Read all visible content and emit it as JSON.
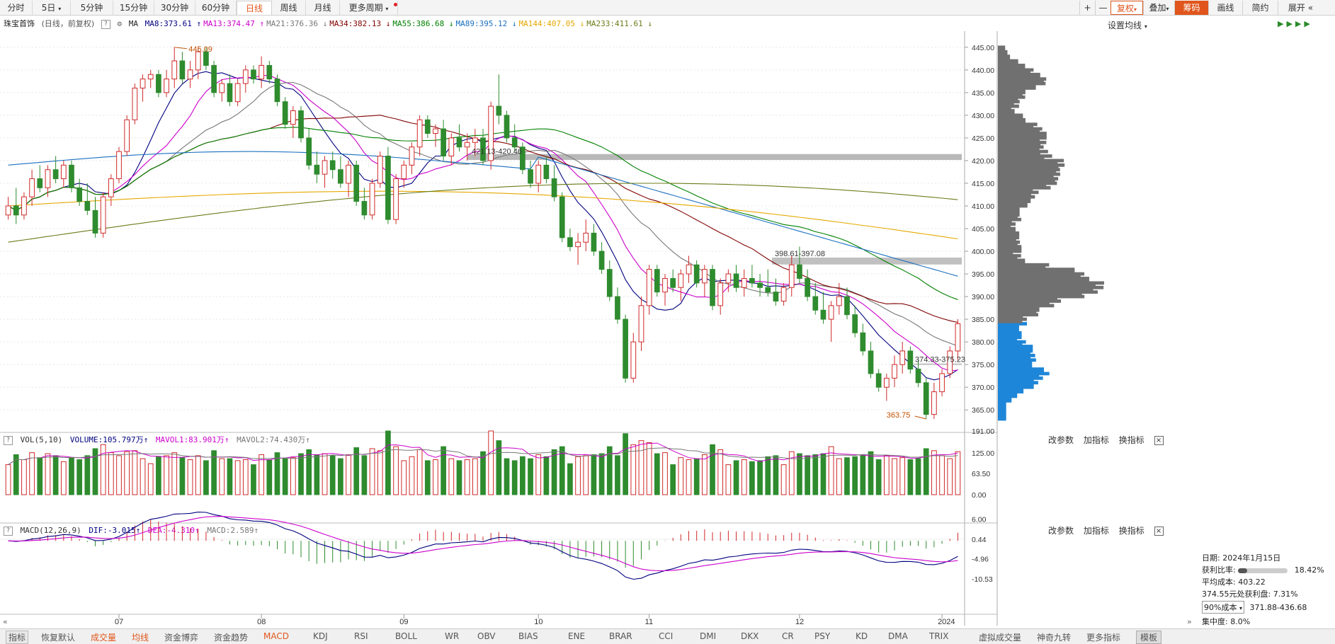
{
  "toolbar": {
    "periods": [
      "分时",
      "5日",
      "5分钟",
      "15分钟",
      "30分钟",
      "60分钟",
      "日线",
      "周线",
      "月线",
      "更多周期"
    ],
    "active_period": "日线",
    "right": {
      "plus": "+",
      "minus": "—",
      "fuquan": "复权",
      "diejia": "叠加",
      "chouma": "筹码",
      "huaxian": "画线",
      "jianyue": "简约",
      "zhankai": "展开",
      "arrows": "«"
    }
  },
  "header": {
    "stock_name": "珠宝首饰",
    "mode": "(日线，前复权)",
    "help": "?",
    "ma_label": "MA",
    "ma": [
      {
        "label": "MA8:373.61",
        "color": "#000080",
        "arrow": "↑"
      },
      {
        "label": "MA13:374.47",
        "color": "#cc00cc",
        "arrow": "↑"
      },
      {
        "label": "MA21:376.36",
        "color": "#777777",
        "arrow": "↓"
      },
      {
        "label": "MA34:382.13",
        "color": "#800000",
        "arrow": "↓"
      },
      {
        "label": "MA55:386.68",
        "color": "#008000",
        "arrow": "↓"
      },
      {
        "label": "MA89:395.12",
        "color": "#1a6fc0",
        "arrow": "↓"
      },
      {
        "label": "MA144:407.05",
        "color": "#e6a800",
        "arrow": "↓"
      },
      {
        "label": "MA233:411.61",
        "color": "#6b7d1a",
        "arrow": "↓"
      }
    ],
    "setting": "设置均线"
  },
  "price_axis": [
    "445.00",
    "440.00",
    "435.00",
    "430.00",
    "425.00",
    "420.00",
    "415.00",
    "410.00",
    "405.00",
    "400.00",
    "395.00",
    "390.00",
    "385.00",
    "380.00",
    "375.00",
    "370.00",
    "365.00"
  ],
  "annotations": {
    "high": "445.09",
    "low": "363.75",
    "band1": "421.13-420.46",
    "band2": "398.61-397.08",
    "band3": "374.33-375.23"
  },
  "volume": {
    "help": "?",
    "label": "VOL(5,10)",
    "volume": "VOLUME:105.797万",
    "mavol1": "MAVOL1:83.901万",
    "mavol2": "MAVOL2:74.430万",
    "axis": [
      "191.00",
      "125.00",
      "63.50",
      "0.00"
    ],
    "actions": [
      "改参数",
      "加指标",
      "换指标"
    ],
    "close": "×"
  },
  "macd": {
    "help": "?",
    "label": "MACD(12,26,9)",
    "dif": "DIF:-3.015",
    "dea": "DEA:-4.310",
    "macd": "MACD:2.589",
    "axis": [
      "6.00",
      "0.44",
      "-4.96",
      "-10.53"
    ],
    "actions": [
      "改参数",
      "加指标",
      "换指标"
    ],
    "close": "×"
  },
  "months": [
    "07",
    "08",
    "09",
    "10",
    "11",
    "12",
    "2024"
  ],
  "chip_info": {
    "date": "日期: 2024年1月15日",
    "profit_label": "获利比率:",
    "profit_value": "18.42%",
    "avg_cost": "平均成本: 403.22",
    "at_price": "374.55元处获利盘: 7.31%",
    "cost_select": "90%成本",
    "cost_range": "371.88-436.68",
    "concentration": "集中度: 8.0%"
  },
  "indicators": [
    "指标",
    "恢复默认",
    "成交量",
    "均线",
    "资金博弈",
    "资金趋势",
    "MACD",
    "KDJ",
    "RSI",
    "BOLL",
    "WR",
    "OBV",
    "BIAS",
    "ENE",
    "BRAR",
    "CCI",
    "DMI",
    "DKX",
    "CR",
    "PSY",
    "KD",
    "DMA",
    "TRIX",
    "虚拟成交量",
    "神奇九转",
    "更多指标",
    "模板"
  ],
  "highlighted_indicators": [
    "成交量",
    "均线",
    "MACD"
  ],
  "chart_data": {
    "type": "candlestick",
    "y_range": [
      363,
      447
    ],
    "candles_ohlc": [
      [
        408,
        412,
        407,
        410
      ],
      [
        410,
        414,
        406,
        408
      ],
      [
        408,
        413,
        407,
        412
      ],
      [
        412,
        418,
        410,
        416
      ],
      [
        416,
        419,
        413,
        414
      ],
      [
        414,
        419,
        412,
        418
      ],
      [
        418,
        421,
        415,
        416
      ],
      [
        416,
        420,
        414,
        419
      ],
      [
        419,
        420,
        413,
        414
      ],
      [
        414,
        416,
        410,
        411
      ],
      [
        411,
        415,
        408,
        409
      ],
      [
        409,
        412,
        403,
        404
      ],
      [
        404,
        413,
        403,
        412
      ],
      [
        412,
        417,
        410,
        416
      ],
      [
        416,
        423,
        415,
        422
      ],
      [
        422,
        430,
        421,
        429
      ],
      [
        429,
        437,
        428,
        436
      ],
      [
        436,
        439,
        433,
        438
      ],
      [
        438,
        440,
        436,
        439
      ],
      [
        439,
        440,
        434,
        435
      ],
      [
        435,
        440,
        434,
        438
      ],
      [
        438,
        445,
        436,
        442
      ],
      [
        442,
        444,
        437,
        438
      ],
      [
        438,
        442,
        436,
        440
      ],
      [
        440,
        445,
        438,
        444
      ],
      [
        444,
        445,
        440,
        441
      ],
      [
        441,
        442,
        434,
        435
      ],
      [
        435,
        438,
        433,
        437
      ],
      [
        437,
        439,
        432,
        433
      ],
      [
        433,
        438,
        432,
        437
      ],
      [
        437,
        441,
        435,
        440
      ],
      [
        440,
        441,
        437,
        438
      ],
      [
        438,
        443,
        436,
        441
      ],
      [
        441,
        442,
        437,
        438
      ],
      [
        438,
        439,
        432,
        433
      ],
      [
        433,
        434,
        427,
        428
      ],
      [
        428,
        432,
        425,
        431
      ],
      [
        431,
        432,
        424,
        425
      ],
      [
        425,
        427,
        418,
        419
      ],
      [
        419,
        422,
        415,
        417
      ],
      [
        417,
        421,
        414,
        420
      ],
      [
        420,
        422,
        416,
        418
      ],
      [
        418,
        421,
        414,
        415
      ],
      [
        415,
        420,
        412,
        419
      ],
      [
        419,
        420,
        410,
        411
      ],
      [
        411,
        414,
        407,
        408
      ],
      [
        408,
        416,
        407,
        415
      ],
      [
        415,
        422,
        414,
        421
      ],
      [
        421,
        423,
        406,
        407
      ],
      [
        407,
        417,
        406,
        416
      ],
      [
        416,
        420,
        414,
        419
      ],
      [
        419,
        424,
        417,
        423
      ],
      [
        423,
        430,
        421,
        429
      ],
      [
        429,
        430,
        425,
        426
      ],
      [
        426,
        428,
        423,
        427
      ],
      [
        427,
        429,
        420,
        421
      ],
      [
        421,
        426,
        419,
        425
      ],
      [
        425,
        428,
        422,
        423
      ],
      [
        423,
        426,
        420,
        424
      ],
      [
        424,
        427,
        421,
        425
      ],
      [
        425,
        427,
        419,
        420
      ],
      [
        420,
        433,
        418,
        432
      ],
      [
        432,
        439,
        428,
        430
      ],
      [
        430,
        431,
        424,
        425
      ],
      [
        425,
        428,
        422,
        423
      ],
      [
        423,
        424,
        417,
        418
      ],
      [
        418,
        420,
        414,
        415
      ],
      [
        415,
        420,
        413,
        419
      ],
      [
        419,
        421,
        415,
        416
      ],
      [
        416,
        419,
        411,
        412
      ],
      [
        412,
        413,
        402,
        403
      ],
      [
        403,
        405,
        400,
        401
      ],
      [
        401,
        404,
        397,
        402
      ],
      [
        402,
        407,
        400,
        404
      ],
      [
        404,
        406,
        399,
        400
      ],
      [
        400,
        402,
        395,
        396
      ],
      [
        396,
        398,
        389,
        390
      ],
      [
        390,
        392,
        384,
        385
      ],
      [
        385,
        386,
        371,
        372
      ],
      [
        372,
        382,
        371,
        380
      ],
      [
        380,
        390,
        378,
        388
      ],
      [
        388,
        397,
        386,
        396
      ],
      [
        396,
        397,
        390,
        391
      ],
      [
        391,
        395,
        388,
        394
      ],
      [
        394,
        396,
        391,
        392
      ],
      [
        392,
        396,
        389,
        395
      ],
      [
        395,
        399,
        393,
        397
      ],
      [
        397,
        398,
        392,
        393
      ],
      [
        393,
        397,
        390,
        396
      ],
      [
        396,
        397,
        387,
        388
      ],
      [
        388,
        394,
        386,
        393
      ],
      [
        393,
        396,
        391,
        395
      ],
      [
        395,
        397,
        391,
        392
      ],
      [
        392,
        396,
        390,
        394
      ],
      [
        394,
        397,
        392,
        393
      ],
      [
        393,
        395,
        390,
        392
      ],
      [
        392,
        396,
        390,
        391
      ],
      [
        391,
        394,
        388,
        389
      ],
      [
        389,
        393,
        388,
        392
      ],
      [
        392,
        399,
        390,
        397
      ],
      [
        397,
        401,
        393,
        394
      ],
      [
        394,
        396,
        389,
        390
      ],
      [
        390,
        393,
        386,
        387
      ],
      [
        387,
        391,
        384,
        385
      ],
      [
        385,
        389,
        380,
        388
      ],
      [
        388,
        393,
        386,
        390
      ],
      [
        390,
        392,
        385,
        386
      ],
      [
        386,
        388,
        381,
        382
      ],
      [
        382,
        384,
        377,
        378
      ],
      [
        378,
        380,
        372,
        373
      ],
      [
        373,
        374,
        369,
        370
      ],
      [
        370,
        373,
        367,
        372
      ],
      [
        372,
        377,
        370,
        375
      ],
      [
        375,
        380,
        373,
        378
      ],
      [
        378,
        379,
        373,
        374
      ],
      [
        374,
        376,
        370,
        371
      ],
      [
        371,
        372,
        363,
        364
      ],
      [
        364,
        371,
        363,
        369
      ],
      [
        369,
        374,
        368,
        373
      ],
      [
        373,
        379,
        372,
        378
      ],
      [
        378,
        385,
        376,
        384
      ]
    ],
    "ma_lines": [
      "MA8",
      "MA13",
      "MA21",
      "MA34",
      "MA55",
      "MA89",
      "MA144",
      "MA233"
    ],
    "x_labels": [
      "07",
      "08",
      "09",
      "10",
      "11",
      "12",
      "2024"
    ],
    "chip_distribution_range": [
      363,
      446
    ]
  }
}
